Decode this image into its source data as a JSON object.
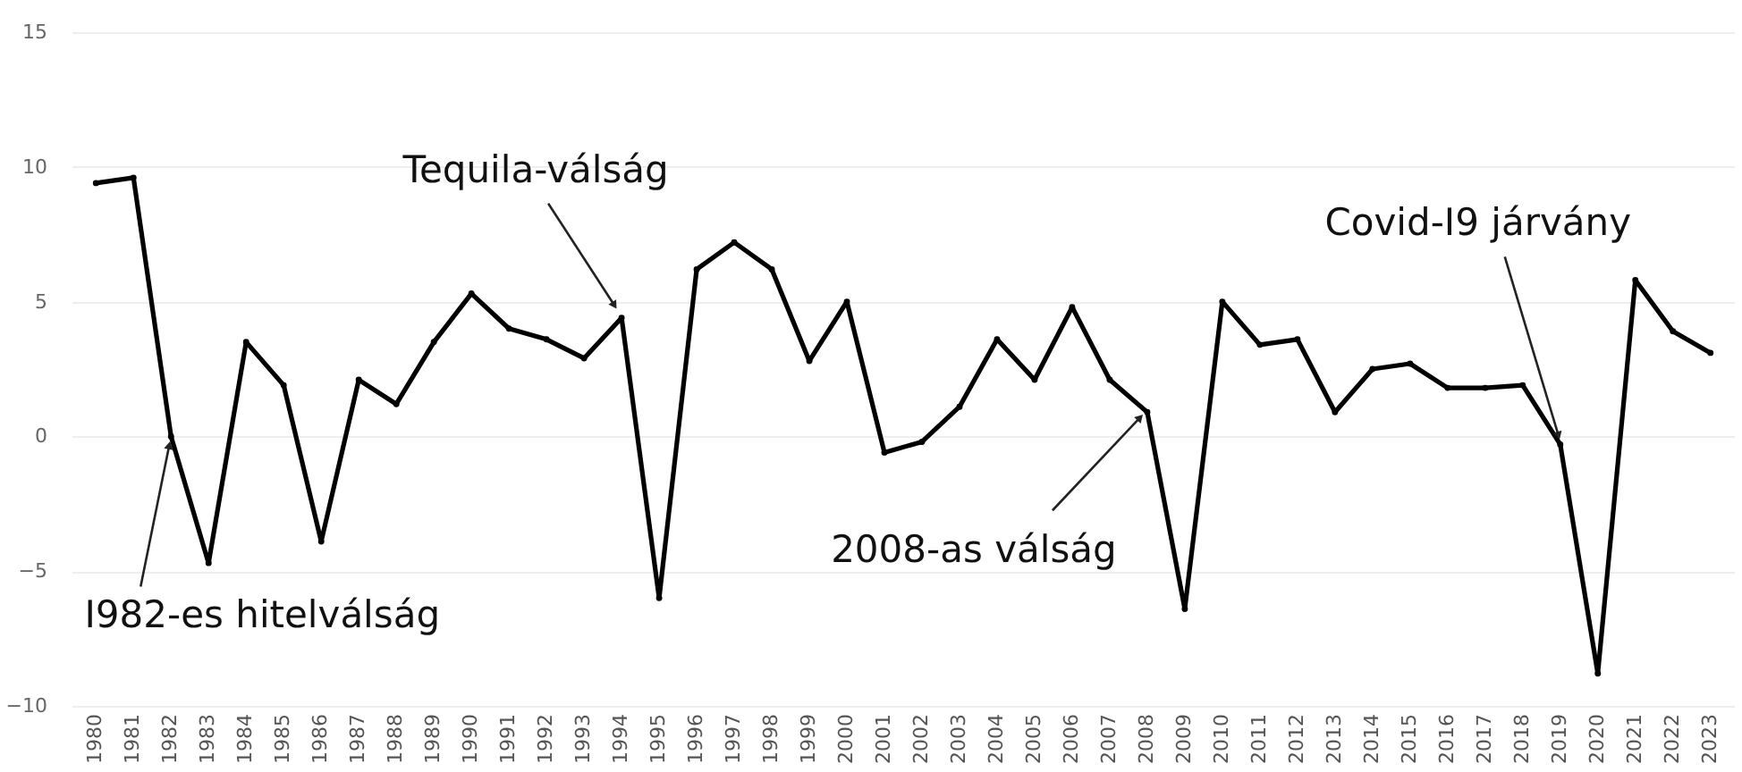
{
  "chart_data": {
    "type": "line",
    "categories": [
      "1980",
      "1981",
      "1982",
      "1983",
      "1984",
      "1985",
      "1986",
      "1987",
      "1988",
      "1989",
      "1990",
      "1991",
      "1992",
      "1993",
      "1994",
      "1995",
      "1996",
      "1997",
      "1998",
      "1999",
      "2000",
      "2001",
      "2002",
      "2003",
      "2004",
      "2005",
      "2006",
      "2007",
      "2008",
      "2009",
      "2010",
      "2011",
      "2012",
      "2013",
      "2014",
      "2015",
      "2016",
      "2017",
      "2018",
      "2019",
      "2020",
      "2021",
      "2022",
      "2023"
    ],
    "series": [
      {
        "color": "#000000",
        "values": [
          9.4,
          9.6,
          0.0,
          -4.7,
          3.5,
          1.9,
          -3.9,
          2.1,
          1.2,
          3.5,
          5.3,
          4.0,
          3.6,
          2.9,
          4.4,
          -6.0,
          6.2,
          7.2,
          6.2,
          2.8,
          5.0,
          -0.6,
          -0.2,
          1.1,
          3.6,
          2.1,
          4.8,
          2.1,
          0.9,
          -6.4,
          5.0,
          3.4,
          3.6,
          0.9,
          2.5,
          2.7,
          1.8,
          1.8,
          1.9,
          -0.3,
          -8.8,
          5.8,
          3.9,
          3.1
        ]
      }
    ],
    "ylim": [
      -10,
      15
    ],
    "yticks": [
      -10,
      -5,
      0,
      5,
      10,
      15
    ],
    "grid": "y",
    "marker": "circle",
    "line_style": "solid",
    "annotations": [
      {
        "text": "I982-es hitelválság",
        "x": "1982",
        "y": 0.0
      },
      {
        "text": "Tequila-válság",
        "x": "1994",
        "y": 4.4
      },
      {
        "text": "2008-as válság",
        "x": "2008",
        "y": 0.9
      },
      {
        "text": "Covid-I9 járvány",
        "x": "2019",
        "y": -0.3
      }
    ]
  }
}
